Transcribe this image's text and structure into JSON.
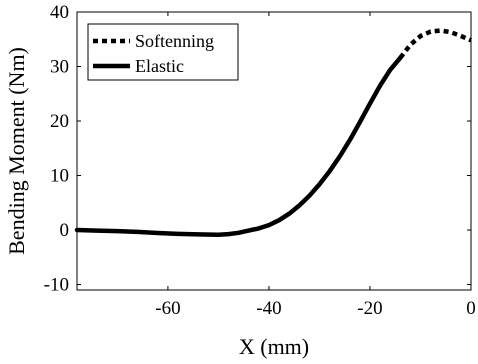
{
  "chart_data": {
    "type": "line",
    "xlabel": "X (mm)",
    "ylabel": "Bending Moment (Nm)",
    "xlim": [
      -78,
      0
    ],
    "ylim": [
      -11,
      40
    ],
    "xticks": [
      -60,
      -40,
      -20,
      0
    ],
    "xtick_labels": [
      "-60",
      "-40",
      "-20",
      "0"
    ],
    "yticks": [
      -10,
      0,
      10,
      20,
      30,
      40
    ],
    "ytick_labels": [
      "-10",
      "0",
      "10",
      "20",
      "30",
      "40"
    ],
    "grid": false,
    "legend_position": "top-left",
    "series": [
      {
        "name": "Softenning",
        "style": "dotted",
        "color": "#000000",
        "x": [
          -14,
          -12,
          -10,
          -8,
          -6,
          -4,
          -2,
          0
        ],
        "y": [
          31.6,
          34.0,
          35.6,
          36.4,
          36.6,
          36.3,
          35.6,
          34.8
        ]
      },
      {
        "name": "Elastic",
        "style": "solid",
        "color": "#000000",
        "x": [
          -78,
          -74,
          -70,
          -66,
          -62,
          -58,
          -54,
          -50,
          -48,
          -46,
          -44,
          -42,
          -40,
          -38,
          -36,
          -34,
          -32,
          -30,
          -28,
          -26,
          -24,
          -22,
          -20,
          -18,
          -16,
          -14
        ],
        "y": [
          0.0,
          -0.1,
          -0.2,
          -0.35,
          -0.55,
          -0.7,
          -0.8,
          -0.85,
          -0.75,
          -0.5,
          -0.1,
          0.3,
          0.9,
          1.8,
          3.0,
          4.5,
          6.3,
          8.4,
          10.8,
          13.5,
          16.5,
          19.8,
          23.2,
          26.5,
          29.4,
          31.6
        ]
      }
    ]
  }
}
